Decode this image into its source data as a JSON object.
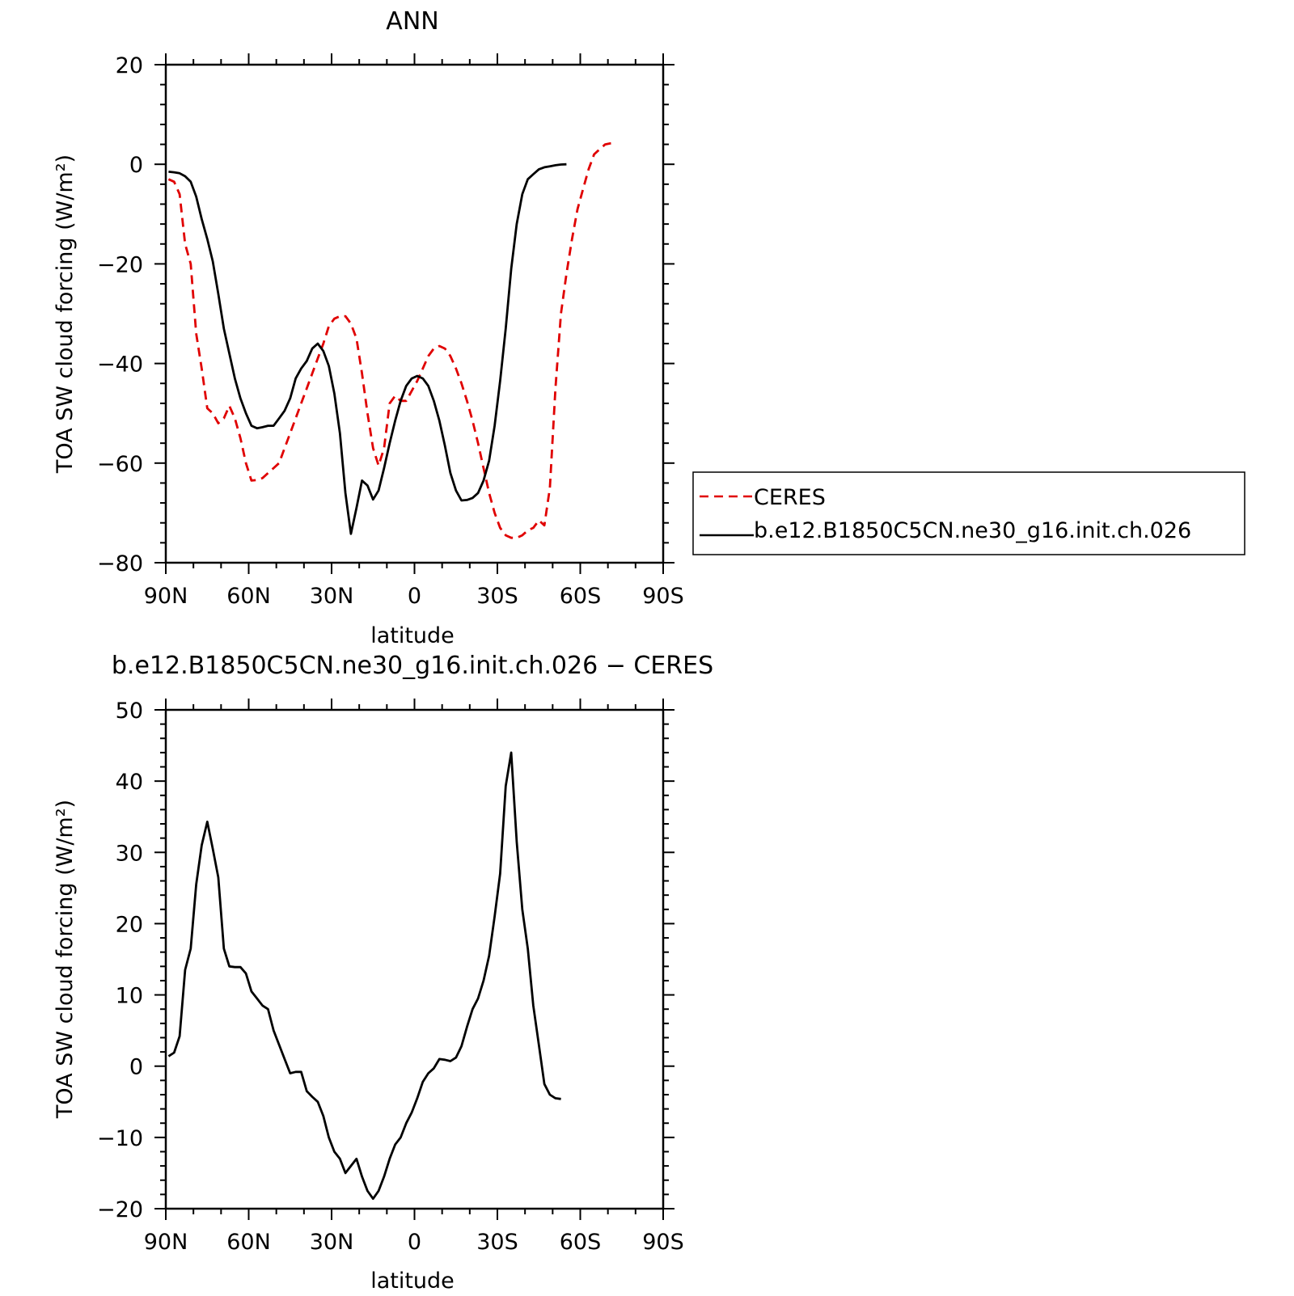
{
  "chart_data": [
    {
      "type": "line",
      "title": "ANN",
      "xlabel": "latitude",
      "ylabel": "TOA SW cloud forcing (W/m²)",
      "xlim": [
        90,
        -90
      ],
      "ylim": [
        -80,
        20
      ],
      "xticks": [
        90,
        60,
        30,
        0,
        -30,
        -60,
        -90
      ],
      "xtick_labels": [
        "90N",
        "60N",
        "30N",
        "0",
        "30S",
        "60S",
        "90S"
      ],
      "yticks": [
        -80,
        -60,
        -40,
        -20,
        0,
        20
      ],
      "ytick_labels": [
        "−80",
        "−60",
        "−40",
        "−20",
        "0",
        "20"
      ],
      "legend": {
        "placement": "right"
      },
      "series": [
        {
          "name": "CERES",
          "color": "#e00000",
          "dash": "dashed",
          "points": [
            [
              89,
              -3
            ],
            [
              87,
              -3.5
            ],
            [
              85,
              -6
            ],
            [
              83,
              -16
            ],
            [
              81,
              -20
            ],
            [
              79,
              -34
            ],
            [
              77,
              -41
            ],
            [
              75,
              -49
            ],
            [
              73,
              -50
            ],
            [
              71,
              -52
            ],
            [
              69,
              -51
            ],
            [
              67,
              -48.5
            ],
            [
              65,
              -51
            ],
            [
              63,
              -55
            ],
            [
              61,
              -60
            ],
            [
              59,
              -63.5
            ],
            [
              57,
              -63.4
            ],
            [
              55,
              -63
            ],
            [
              53,
              -62
            ],
            [
              51,
              -61
            ],
            [
              49,
              -60
            ],
            [
              47,
              -57
            ],
            [
              45,
              -54
            ],
            [
              43,
              -51
            ],
            [
              41,
              -48
            ],
            [
              39,
              -45
            ],
            [
              37,
              -42
            ],
            [
              35,
              -39
            ],
            [
              33,
              -36
            ],
            [
              31,
              -32.5
            ],
            [
              29,
              -31
            ],
            [
              27,
              -30.5
            ],
            [
              25,
              -30.5
            ],
            [
              23,
              -32
            ],
            [
              21,
              -35
            ],
            [
              19,
              -42
            ],
            [
              17,
              -50
            ],
            [
              15,
              -57
            ],
            [
              13,
              -60.5
            ],
            [
              11,
              -57
            ],
            [
              9,
              -48
            ],
            [
              7,
              -46.5
            ],
            [
              5,
              -47.5
            ],
            [
              3,
              -47.5
            ],
            [
              1,
              -45.5
            ],
            [
              -1,
              -43.5
            ],
            [
              -3,
              -41
            ],
            [
              -5,
              -38.5
            ],
            [
              -7,
              -37
            ],
            [
              -9,
              -36.5
            ],
            [
              -11,
              -37
            ],
            [
              -13,
              -38.5
            ],
            [
              -15,
              -41
            ],
            [
              -17,
              -44
            ],
            [
              -19,
              -47.5
            ],
            [
              -21,
              -51.5
            ],
            [
              -23,
              -56
            ],
            [
              -25,
              -61
            ],
            [
              -27,
              -66
            ],
            [
              -29,
              -70
            ],
            [
              -31,
              -73
            ],
            [
              -33,
              -74.5
            ],
            [
              -35,
              -75
            ],
            [
              -37,
              -75
            ],
            [
              -39,
              -74.5
            ],
            [
              -41,
              -73.5
            ],
            [
              -43,
              -73
            ],
            [
              -45,
              -71.5
            ],
            [
              -47,
              -72.5
            ],
            [
              -49,
              -65
            ],
            [
              -51,
              -45
            ],
            [
              -53,
              -30
            ],
            [
              -55,
              -22
            ],
            [
              -57,
              -15
            ],
            [
              -59,
              -9
            ],
            [
              -61,
              -5
            ],
            [
              -63,
              -1
            ],
            [
              -65,
              2
            ],
            [
              -67,
              3
            ],
            [
              -69,
              4
            ],
            [
              -71,
              4.2
            ],
            [
              -73,
              4.3
            ]
          ]
        },
        {
          "name": "b.e12.B1850C5CN.ne30_g16.init.ch.026",
          "color": "#000000",
          "dash": "solid",
          "points": [
            [
              89,
              -1.5
            ],
            [
              87,
              -1.6
            ],
            [
              85,
              -1.8
            ],
            [
              83,
              -2.4
            ],
            [
              81,
              -3.5
            ],
            [
              79,
              -6.5
            ],
            [
              77,
              -11
            ],
            [
              75,
              -15
            ],
            [
              73,
              -19.5
            ],
            [
              71,
              -26
            ],
            [
              69,
              -33
            ],
            [
              67,
              -38
            ],
            [
              65,
              -43
            ],
            [
              63,
              -47
            ],
            [
              61,
              -50
            ],
            [
              59,
              -52.5
            ],
            [
              57,
              -53
            ],
            [
              55,
              -52.8
            ],
            [
              53,
              -52.5
            ],
            [
              51,
              -52.5
            ],
            [
              49,
              -51
            ],
            [
              47,
              -49.5
            ],
            [
              45,
              -47
            ],
            [
              43,
              -43
            ],
            [
              41,
              -41
            ],
            [
              39,
              -39.5
            ],
            [
              37,
              -37
            ],
            [
              35,
              -36
            ],
            [
              33,
              -37.5
            ],
            [
              31,
              -40.5
            ],
            [
              29,
              -46
            ],
            [
              27,
              -54
            ],
            [
              25,
              -66
            ],
            [
              23,
              -74.2
            ],
            [
              21,
              -69
            ],
            [
              19,
              -63.5
            ],
            [
              17,
              -64.5
            ],
            [
              15,
              -67.3
            ],
            [
              13,
              -65.5
            ],
            [
              11,
              -61
            ],
            [
              9,
              -56
            ],
            [
              7,
              -51.5
            ],
            [
              5,
              -47.5
            ],
            [
              3,
              -44.5
            ],
            [
              1,
              -43
            ],
            [
              -1,
              -42.5
            ],
            [
              -3,
              -43
            ],
            [
              -5,
              -44.5
            ],
            [
              -7,
              -47.5
            ],
            [
              -9,
              -51.5
            ],
            [
              -11,
              -56.5
            ],
            [
              -13,
              -62
            ],
            [
              -15,
              -65.5
            ],
            [
              -17,
              -67.5
            ],
            [
              -19,
              -67.4
            ],
            [
              -21,
              -67
            ],
            [
              -23,
              -66
            ],
            [
              -25,
              -63.5
            ],
            [
              -27,
              -59.5
            ],
            [
              -29,
              -52.5
            ],
            [
              -31,
              -43.5
            ],
            [
              -33,
              -33
            ],
            [
              -35,
              -21
            ],
            [
              -37,
              -12
            ],
            [
              -39,
              -6
            ],
            [
              -41,
              -3
            ],
            [
              -43,
              -2
            ],
            [
              -45,
              -1
            ],
            [
              -47,
              -0.6
            ],
            [
              -49,
              -0.4
            ],
            [
              -51,
              -0.2
            ],
            [
              -53,
              -0.05
            ],
            [
              -55,
              0
            ]
          ]
        }
      ]
    },
    {
      "type": "line",
      "title": "b.e12.B1850C5CN.ne30_g16.init.ch.026 − CERES",
      "xlabel": "latitude",
      "ylabel": "TOA SW cloud forcing (W/m²)",
      "xlim": [
        90,
        -90
      ],
      "ylim": [
        -20,
        50
      ],
      "xticks": [
        90,
        60,
        30,
        0,
        -30,
        -60,
        -90
      ],
      "xtick_labels": [
        "90N",
        "60N",
        "30N",
        "0",
        "30S",
        "60S",
        "90S"
      ],
      "yticks": [
        -20,
        -10,
        0,
        10,
        20,
        30,
        40,
        50
      ],
      "ytick_labels": [
        "−20",
        "−10",
        "0",
        "10",
        "20",
        "30",
        "40",
        "50"
      ],
      "series": [
        {
          "color": "#000000",
          "dash": "solid",
          "points": [
            [
              89,
              1.4
            ],
            [
              87,
              1.9
            ],
            [
              85,
              4.2
            ],
            [
              83,
              13.5
            ],
            [
              81,
              16.5
            ],
            [
              79,
              25.5
            ],
            [
              77,
              31
            ],
            [
              75,
              34.3
            ],
            [
              73,
              30.5
            ],
            [
              71,
              26.5
            ],
            [
              69,
              16.5
            ],
            [
              67,
              14
            ],
            [
              65,
              13.9
            ],
            [
              63,
              13.9
            ],
            [
              61,
              13
            ],
            [
              59,
              10.5
            ],
            [
              57,
              9.5
            ],
            [
              55,
              8.5
            ],
            [
              53,
              8
            ],
            [
              51,
              5
            ],
            [
              49,
              3
            ],
            [
              47,
              1
            ],
            [
              45,
              -1
            ],
            [
              43,
              -0.8
            ],
            [
              41,
              -0.8
            ],
            [
              39,
              -3.5
            ],
            [
              37,
              -4.3
            ],
            [
              35,
              -5
            ],
            [
              33,
              -7
            ],
            [
              31,
              -10
            ],
            [
              29,
              -12
            ],
            [
              27,
              -13
            ],
            [
              25,
              -15
            ],
            [
              23,
              -14
            ],
            [
              21,
              -13
            ],
            [
              19,
              -15.5
            ],
            [
              17,
              -17.5
            ],
            [
              15,
              -18.6
            ],
            [
              13,
              -17.5
            ],
            [
              11,
              -15.5
            ],
            [
              9,
              -13
            ],
            [
              7,
              -11
            ],
            [
              5,
              -10
            ],
            [
              3,
              -8
            ],
            [
              1,
              -6.5
            ],
            [
              -1,
              -4.5
            ],
            [
              -3,
              -2.2
            ],
            [
              -5,
              -1
            ],
            [
              -7,
              -0.3
            ],
            [
              -9,
              1
            ],
            [
              -11,
              0.9
            ],
            [
              -13,
              0.7
            ],
            [
              -15,
              1.2
            ],
            [
              -17,
              2.8
            ],
            [
              -19,
              5.5
            ],
            [
              -21,
              8
            ],
            [
              -23,
              9.5
            ],
            [
              -25,
              12
            ],
            [
              -27,
              15.5
            ],
            [
              -29,
              21
            ],
            [
              -31,
              27
            ],
            [
              -33,
              39.3
            ],
            [
              -35,
              44
            ],
            [
              -37,
              31.5
            ],
            [
              -39,
              22
            ],
            [
              -41,
              16.5
            ],
            [
              -43,
              8.5
            ],
            [
              -45,
              3
            ],
            [
              -47,
              -2.5
            ],
            [
              -49,
              -4
            ],
            [
              -51,
              -4.5
            ],
            [
              -53,
              -4.6
            ]
          ]
        }
      ]
    }
  ]
}
